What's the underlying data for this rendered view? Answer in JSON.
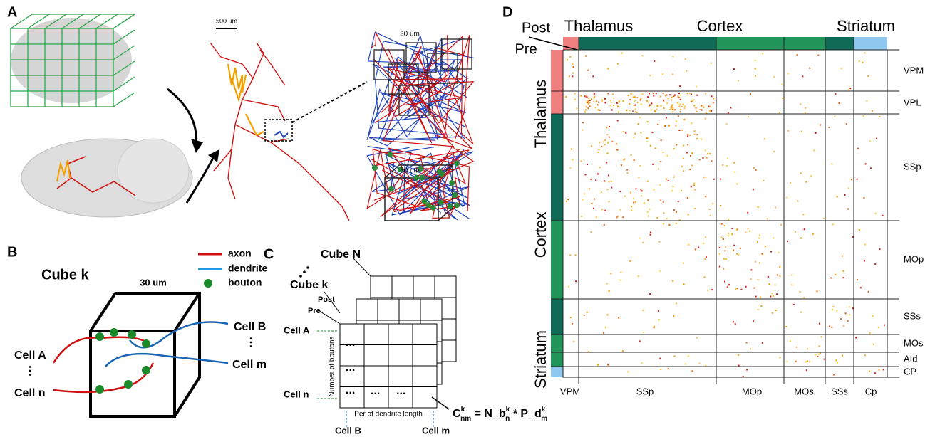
{
  "panel_a": {
    "label": "A",
    "scale_bar": "500 um",
    "zoom_scale_1": "30 um",
    "zoom_scale_2": "30 um"
  },
  "panel_b": {
    "label": "B",
    "title": "Cube k",
    "cube_size": "30 um",
    "legend": [
      "axon",
      "dendrite",
      "bouton"
    ],
    "left_cells": [
      "Cell A",
      "⋮",
      "Cell n"
    ],
    "right_cells": [
      "Cell B",
      "⋮",
      "Cell m"
    ]
  },
  "panel_c": {
    "label": "C",
    "cube_back": "Cube N",
    "cube_front": "Cube k",
    "post": "Post",
    "pre": "Pre",
    "row_labels": [
      "Cell A",
      "Cell n"
    ],
    "col_labels": [
      "Cell B",
      "Cell m"
    ],
    "y_axis": "Number of boutons",
    "x_axis": "Per of dendrite length",
    "ellipses": [
      "...",
      "...",
      "...",
      "...",
      "..."
    ],
    "formula": {
      "c": "C",
      "k1": "k",
      "nm": "nm",
      "eq": " = N_b",
      "k2": "k",
      "n": "n",
      "mul": " * P_d",
      "k3": "k",
      "m": "m"
    }
  },
  "panel_d": {
    "label": "D",
    "post": "Post",
    "pre": "Pre",
    "top_groups": [
      "Thalamus",
      "Cortex",
      "Striatum"
    ],
    "left_groups": [
      "Thalamus",
      "Cortex",
      "Striatum"
    ],
    "row_labels": [
      "VPM",
      "VPL",
      "SSp",
      "MOp",
      "SSs",
      "MOs",
      "AId",
      "CP"
    ],
    "col_labels": [
      "VPM",
      "SSp",
      "MOp",
      "MOs",
      "SSs",
      "Cp"
    ]
  }
}
